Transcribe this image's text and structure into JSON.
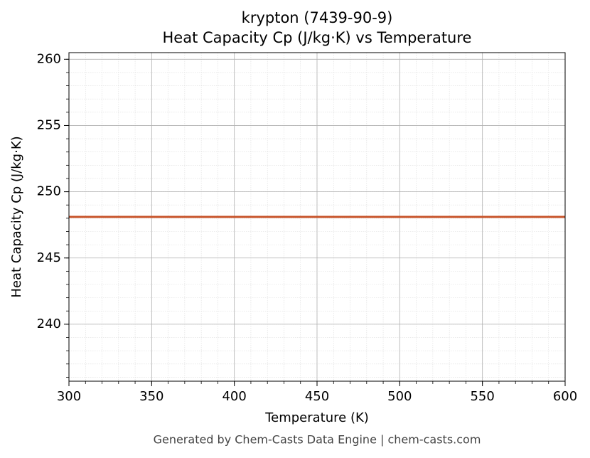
{
  "chart_data": {
    "type": "line",
    "title": "krypton (7439-90-9)",
    "subtitle": "Heat Capacity Cp (J/kg·K) vs Temperature",
    "x_label": "Temperature (K)",
    "y_label": "Heat Capacity Cp (J/kg·K)",
    "footer": "Generated by Chem-Casts Data Engine | chem-casts.com",
    "x": [
      300,
      600
    ],
    "series": [
      {
        "name": "Cp",
        "color": "#c8552b",
        "values": [
          248.1,
          248.1
        ]
      }
    ],
    "xlim": [
      300,
      600
    ],
    "xticks": [
      300,
      350,
      400,
      450,
      500,
      550,
      600
    ],
    "ylim": [
      235.7,
      260.5
    ],
    "yticks": [
      240,
      245,
      250,
      255,
      260
    ],
    "grid": true
  }
}
